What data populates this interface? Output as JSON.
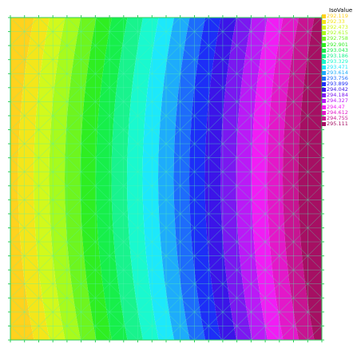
{
  "legend": {
    "title": "IsoValue",
    "items": [
      {
        "label": "292.119",
        "color": "#ffd21e"
      },
      {
        "label": "292.33",
        "color": "#f4e61a"
      },
      {
        "label": "292.473",
        "color": "#d2f91c"
      },
      {
        "label": "292.615",
        "color": "#a8fb1d"
      },
      {
        "label": "292.758",
        "color": "#6ef51f"
      },
      {
        "label": "292.901",
        "color": "#2fee21"
      },
      {
        "label": "293.043",
        "color": "#17ef4a"
      },
      {
        "label": "293.186",
        "color": "#19f38d"
      },
      {
        "label": "293.329",
        "color": "#1af9cf"
      },
      {
        "label": "293.471",
        "color": "#1de8fb"
      },
      {
        "label": "293.614",
        "color": "#1eacfb"
      },
      {
        "label": "293.756",
        "color": "#1e6cfb"
      },
      {
        "label": "293.899",
        "color": "#1d2ef7"
      },
      {
        "label": "294.042",
        "color": "#3c14e8"
      },
      {
        "label": "294.184",
        "color": "#7b18f0"
      },
      {
        "label": "294.327",
        "color": "#ba1af6"
      },
      {
        "label": "294.47",
        "color": "#f01df4"
      },
      {
        "label": "294.612",
        "color": "#e318c9"
      },
      {
        "label": "294.755",
        "color": "#c81492"
      },
      {
        "label": "295.111",
        "color": "#a60f63"
      }
    ]
  },
  "plot": {
    "band_colors": [
      "#ffd21e",
      "#f4e61a",
      "#d2f91c",
      "#a8fb1d",
      "#6ef51f",
      "#2fee21",
      "#17ef4a",
      "#19f38d",
      "#1af9cf",
      "#1de8fb",
      "#1eacfb",
      "#1e6cfb",
      "#1d2ef7",
      "#3c14e8",
      "#7b18f0",
      "#ba1af6",
      "#f01df4",
      "#e318c9",
      "#c81492",
      "#a60f63"
    ],
    "mesh_color": "#55f0b0",
    "border_color": "#2ecf5a"
  }
}
